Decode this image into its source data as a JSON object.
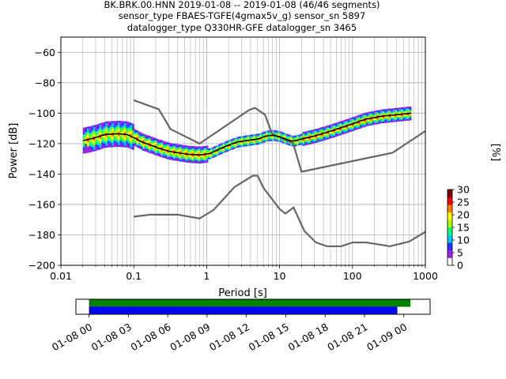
{
  "window": {
    "width": 640,
    "height": 480
  },
  "chart_data": [
    {
      "type": "heatmap",
      "title_lines": [
        "BK.BRK.00.HNN   2019-01-08 -- 2019-01-08  (46/46 segments)",
        "sensor_type FBAES-TGFE(4gmax5v_g) sensor_sn 5897",
        "datalogger_type Q330HR-GFE datalogger_sn 3465"
      ],
      "xlabel": "Period [s]",
      "ylabel": "Power [dB]",
      "x_scale": "log",
      "xlim": [
        0.01,
        1000
      ],
      "ylim": [
        -200,
        -50
      ],
      "x_ticks": [
        {
          "value": 0.01,
          "label": "0.01"
        },
        {
          "value": 0.1,
          "label": "0.1"
        },
        {
          "value": 1,
          "label": "1"
        },
        {
          "value": 10,
          "label": "10"
        },
        {
          "value": 100,
          "label": "100"
        },
        {
          "value": 1000,
          "label": "1000"
        }
      ],
      "y_ticks": [
        {
          "value": -200,
          "label": "−200"
        },
        {
          "value": -180,
          "label": "−180"
        },
        {
          "value": -160,
          "label": "−160"
        },
        {
          "value": -140,
          "label": "−140"
        },
        {
          "value": -120,
          "label": "−120"
        },
        {
          "value": -100,
          "label": "−100"
        },
        {
          "value": -80,
          "label": "−80"
        },
        {
          "value": -60,
          "label": "−60"
        }
      ],
      "grid": true,
      "noise_models": {
        "color": "#666666",
        "high": [
          [
            0.1,
            -91.5
          ],
          [
            0.22,
            -97.4
          ],
          [
            0.32,
            -110.5
          ],
          [
            0.8,
            -120
          ],
          [
            3.8,
            -98
          ],
          [
            4.6,
            -96.5
          ],
          [
            6.3,
            -101
          ],
          [
            7.9,
            -113.5
          ],
          [
            15.4,
            -120
          ],
          [
            20,
            -138.5
          ],
          [
            354.8,
            -126
          ],
          [
            10000,
            -80
          ]
        ],
        "low": [
          [
            0.1,
            -168
          ],
          [
            0.17,
            -166.7
          ],
          [
            0.4,
            -166.7
          ],
          [
            0.8,
            -169.2
          ],
          [
            1.24,
            -163.7
          ],
          [
            2.4,
            -148.6
          ],
          [
            4.3,
            -141.1
          ],
          [
            5,
            -141.1
          ],
          [
            6,
            -149
          ],
          [
            10,
            -163
          ],
          [
            12,
            -166
          ],
          [
            15.6,
            -162
          ],
          [
            21.9,
            -177.5
          ],
          [
            31.6,
            -185
          ],
          [
            45,
            -187.5
          ],
          [
            70,
            -187.5
          ],
          [
            100,
            -185
          ],
          [
            154,
            -185
          ],
          [
            328,
            -187.5
          ],
          [
            600,
            -184.4
          ],
          [
            1000,
            -178
          ]
        ]
      },
      "mode_curve": [
        [
          0.02,
          -118
        ],
        [
          0.025,
          -117
        ],
        [
          0.03,
          -116
        ],
        [
          0.04,
          -114
        ],
        [
          0.06,
          -113.5
        ],
        [
          0.08,
          -114
        ],
        [
          0.1,
          -116
        ],
        [
          0.13,
          -119
        ],
        [
          0.17,
          -121
        ],
        [
          0.22,
          -123
        ],
        [
          0.3,
          -125
        ],
        [
          0.4,
          -126
        ],
        [
          0.55,
          -127
        ],
        [
          0.8,
          -127.5
        ],
        [
          1.1,
          -126.5
        ],
        [
          1.5,
          -123.5
        ],
        [
          2,
          -121
        ],
        [
          2.6,
          -119
        ],
        [
          3.5,
          -118
        ],
        [
          5,
          -117
        ],
        [
          6.5,
          -115
        ],
        [
          8,
          -114.5
        ],
        [
          10,
          -115.5
        ],
        [
          12,
          -117
        ],
        [
          15,
          -118.5
        ],
        [
          20,
          -117
        ],
        [
          30,
          -115
        ],
        [
          45,
          -112.5
        ],
        [
          70,
          -109.5
        ],
        [
          100,
          -107
        ],
        [
          150,
          -104
        ],
        [
          250,
          -102
        ],
        [
          400,
          -101
        ],
        [
          640,
          -100
        ]
      ],
      "colorbar": {
        "label": "[%]",
        "range": [
          0,
          30
        ],
        "ticks": [
          {
            "value": 0,
            "label": "0"
          },
          {
            "value": 5,
            "label": "5"
          },
          {
            "value": 10,
            "label": "10"
          },
          {
            "value": 15,
            "label": "15"
          },
          {
            "value": 20,
            "label": "20"
          },
          {
            "value": 25,
            "label": "25"
          },
          {
            "value": 30,
            "label": "30"
          }
        ],
        "colors": [
          "#ffffff",
          "#a020f0",
          "#3030ff",
          "#00c8ff",
          "#00ff80",
          "#a0ff00",
          "#ffff00",
          "#ff8000",
          "#ff0000",
          "#800000"
        ]
      }
    },
    {
      "type": "bar",
      "description_role": "data coverage timeline",
      "xlim_hours": [
        -1,
        26
      ],
      "bars": [
        {
          "start_hour": 0,
          "end_hour": 24.5,
          "color": "#008000"
        },
        {
          "start_hour": 0,
          "end_hour": 23.5,
          "color": "#0000ff"
        }
      ],
      "x_ticks": [
        {
          "hour": 0,
          "label": "01-08 00"
        },
        {
          "hour": 3,
          "label": "01-08 03"
        },
        {
          "hour": 6,
          "label": "01-08 06"
        },
        {
          "hour": 9,
          "label": "01-08 09"
        },
        {
          "hour": 12,
          "label": "01-08 12"
        },
        {
          "hour": 15,
          "label": "01-08 15"
        },
        {
          "hour": 18,
          "label": "01-08 18"
        },
        {
          "hour": 21,
          "label": "01-08 21"
        },
        {
          "hour": 24,
          "label": "01-09 00"
        }
      ]
    }
  ]
}
